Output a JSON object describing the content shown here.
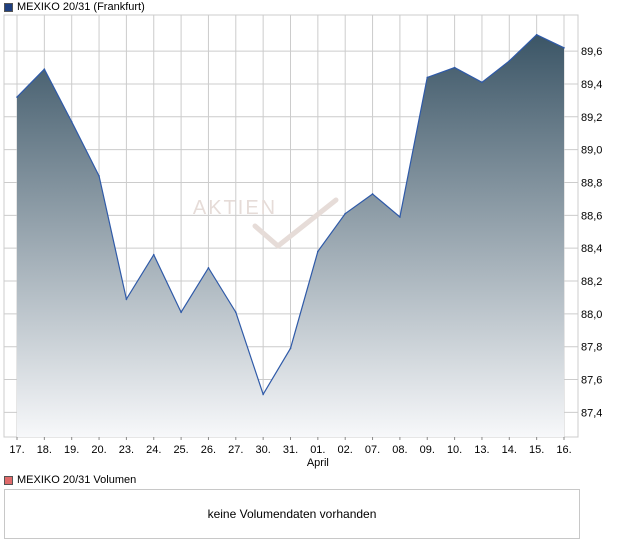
{
  "price_legend": {
    "label": "MEXIKO 20/31 (Frankfurt)",
    "color": "#1f3f7f"
  },
  "volume_legend": {
    "label": "MEXIKO 20/31 Volumen",
    "color": "#e06a6a"
  },
  "watermark": "AKTIEN",
  "volume_panel": {
    "message": "keine Volumendaten vorhanden"
  },
  "colors": {
    "line": "#2f5aa8",
    "fill_top": "#3b5566",
    "fill_bottom": "#f7f8fa",
    "grid": "#cccccc"
  },
  "chart_data": {
    "type": "area",
    "x": [
      "17.",
      "18.",
      "19.",
      "20.",
      "23.",
      "24.",
      "25.",
      "26.",
      "27.",
      "30.",
      "31.",
      "01.",
      "02.",
      "07.",
      "08.",
      "09.",
      "10.",
      "13.",
      "14.",
      "15.",
      "16."
    ],
    "x_sublabels": {
      "11": "April"
    },
    "series": [
      {
        "name": "MEXIKO 20/31 (Frankfurt)",
        "values": [
          89.32,
          89.49,
          89.17,
          88.84,
          88.09,
          88.36,
          88.01,
          88.28,
          88.01,
          87.51,
          87.79,
          88.38,
          88.61,
          88.73,
          88.59,
          89.44,
          89.5,
          89.41,
          89.54,
          89.7,
          89.62
        ]
      }
    ],
    "yticks": [
      "87,4",
      "87,6",
      "87,8",
      "88,0",
      "88,2",
      "88,4",
      "88,6",
      "88,8",
      "89,0",
      "89,2",
      "89,4",
      "89,6"
    ],
    "ylim": [
      87.25,
      89.82
    ],
    "grid": true,
    "y_axis_side": "right"
  }
}
